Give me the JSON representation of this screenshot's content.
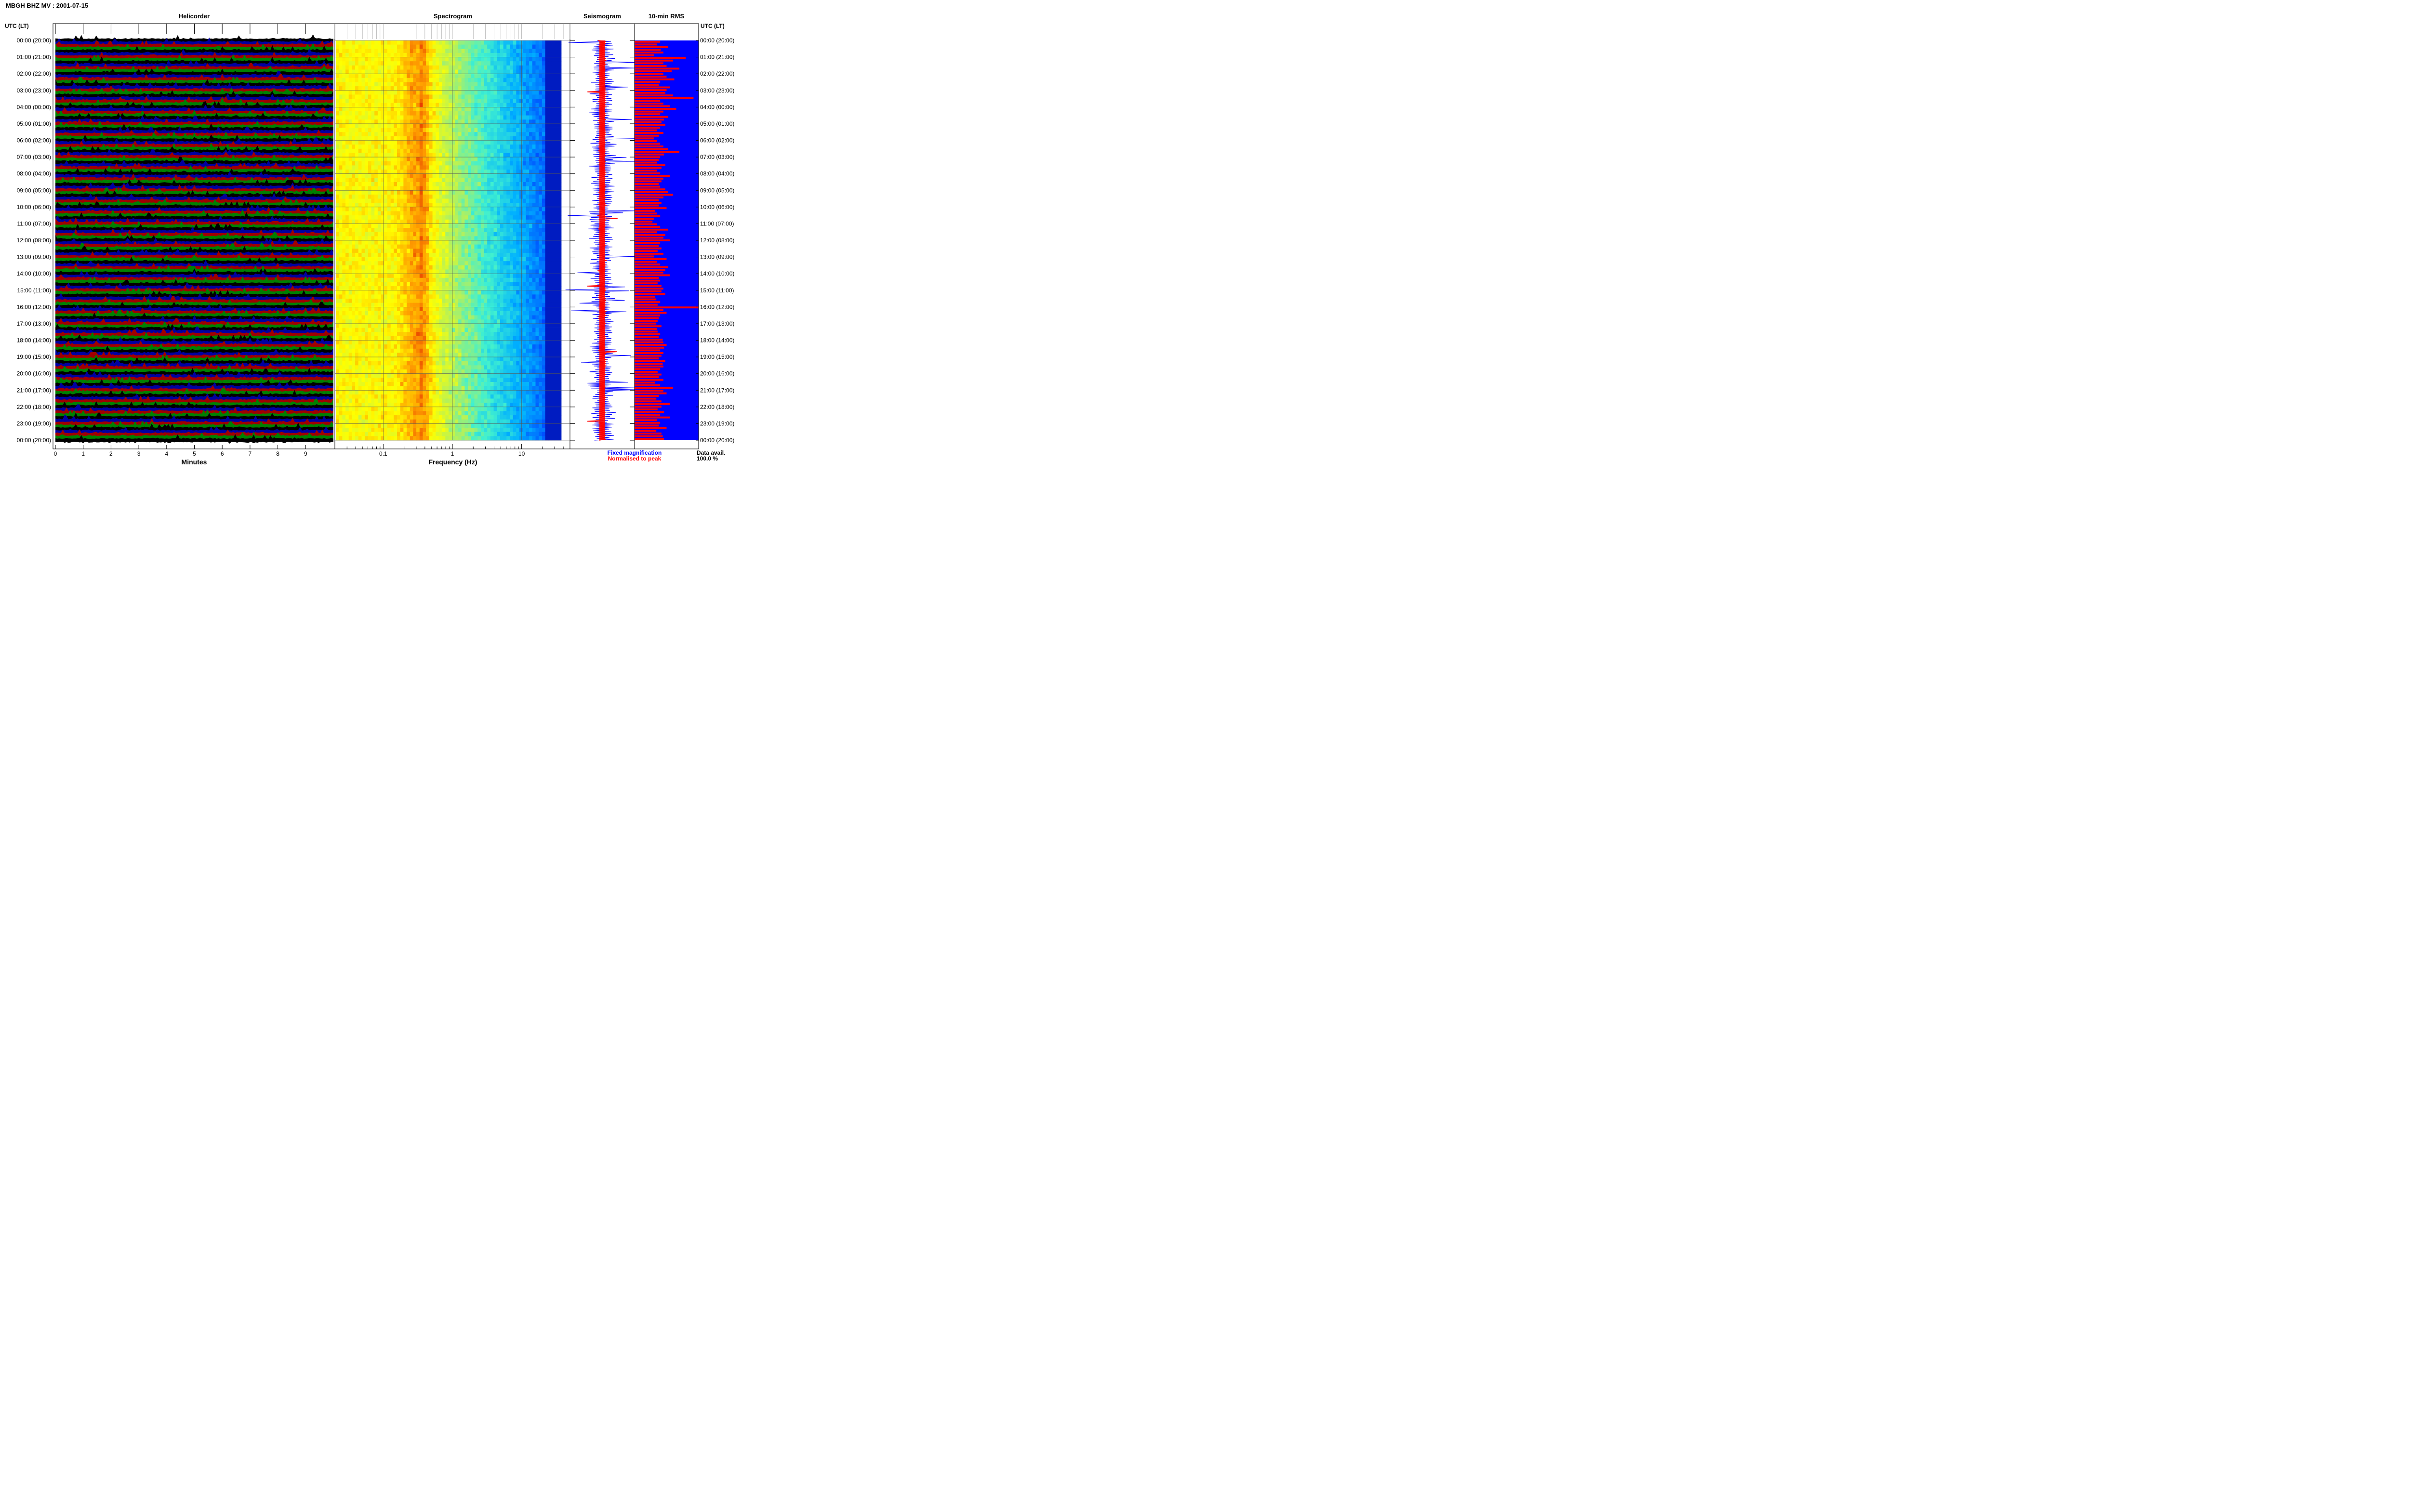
{
  "title": "MBGH BHZ MV : 2001-07-15",
  "time_axis_label": "UTC (LT)",
  "time_labels": [
    "00:00 (20:00)",
    "01:00 (21:00)",
    "02:00 (22:00)",
    "03:00 (23:00)",
    "04:00 (00:00)",
    "05:00 (01:00)",
    "06:00 (02:00)",
    "07:00 (03:00)",
    "08:00 (04:00)",
    "09:00 (05:00)",
    "10:00 (06:00)",
    "11:00 (07:00)",
    "12:00 (08:00)",
    "13:00 (09:00)",
    "14:00 (10:00)",
    "15:00 (11:00)",
    "16:00 (12:00)",
    "17:00 (13:00)",
    "18:00 (14:00)",
    "19:00 (15:00)",
    "20:00 (16:00)",
    "21:00 (17:00)",
    "22:00 (18:00)",
    "23:00 (19:00)",
    "00:00 (20:00)"
  ],
  "colors": {
    "helicorder_traces": [
      "#000000",
      "#0000a0",
      "#a00000",
      "#008000"
    ],
    "fixed_magnification": "#0000ff",
    "normalised": "#ff0000",
    "rms_background": "#0000ff",
    "rms_bars": "#ff0000"
  },
  "chart_data": [
    {
      "type": "line",
      "panel": "helicorder",
      "title": "Helicorder",
      "xlabel": "Minutes",
      "x_ticks": [
        "0",
        "1",
        "2",
        "3",
        "4",
        "5",
        "6",
        "7",
        "8",
        "9"
      ],
      "xlim": [
        0,
        10
      ],
      "lines_per_hour": 6
    },
    {
      "type": "heatmap",
      "panel": "spectrogram",
      "title": "Spectrogram",
      "xlabel": "Frequency (Hz)",
      "x_scale": "log",
      "x_ticks": [
        "0.1",
        "1",
        "10"
      ],
      "xlim": [
        0.02,
        50
      ],
      "band_peak_hz": 0.35
    },
    {
      "type": "line",
      "panel": "seismogram",
      "title": "Seismogram",
      "series": [
        {
          "name": "Fixed magnification",
          "color": "#0000ff"
        },
        {
          "name": "Normalised to peak",
          "color": "#ff0000"
        }
      ]
    },
    {
      "type": "bar",
      "panel": "rms",
      "title": "10-min RMS",
      "values": [
        0.4,
        0.35,
        0.52,
        0.41,
        0.45,
        0.3,
        0.8,
        0.6,
        0.45,
        0.5,
        0.7,
        0.58,
        0.45,
        0.5,
        0.62,
        0.4,
        0.38,
        0.55,
        0.5,
        0.48,
        0.6,
        0.92,
        0.4,
        0.45,
        0.55,
        0.65,
        0.45,
        0.4,
        0.52,
        0.46,
        0.42,
        0.48,
        0.4,
        0.35,
        0.45,
        0.38,
        0.3,
        0.35,
        0.4,
        0.45,
        0.52,
        0.7,
        0.46,
        0.4,
        0.38,
        0.35,
        0.48,
        0.42,
        0.35,
        0.4,
        0.55,
        0.45,
        0.42,
        0.38,
        0.4,
        0.48,
        0.52,
        0.6,
        0.45,
        0.38,
        0.42,
        0.38,
        0.5,
        0.32,
        0.35,
        0.4,
        0.3,
        0.28,
        0.35,
        0.4,
        0.52,
        0.35,
        0.48,
        0.45,
        0.55,
        0.4,
        0.38,
        0.42,
        0.36,
        0.45,
        0.3,
        0.5,
        0.35,
        0.4,
        0.52,
        0.48,
        0.45,
        0.55,
        0.38,
        0.4,
        0.36,
        0.42,
        0.45,
        0.42,
        0.48,
        0.32,
        0.34,
        0.4,
        0.36,
        1.0,
        0.45,
        0.5,
        0.4,
        0.38,
        0.36,
        0.34,
        0.42,
        0.35,
        0.36,
        0.4,
        0.38,
        0.44,
        0.45,
        0.5,
        0.46,
        0.4,
        0.45,
        0.42,
        0.38,
        0.48,
        0.44,
        0.45,
        0.4,
        0.36,
        0.42,
        0.38,
        0.45,
        0.32,
        0.4,
        0.6,
        0.45,
        0.5,
        0.38,
        0.34,
        0.42,
        0.55,
        0.42,
        0.36,
        0.46,
        0.4,
        0.55,
        0.35,
        0.4,
        0.38,
        0.5,
        0.34,
        0.42,
        0.44,
        0.46
      ],
      "legend": [
        "Fixed magnification",
        "Normalised to peak"
      ]
    }
  ],
  "footer": {
    "legend_fixed": "Fixed magnification",
    "legend_normalised": "Normalised to peak",
    "data_avail_label": "Data avail.",
    "data_avail_value": "100.0 %"
  }
}
